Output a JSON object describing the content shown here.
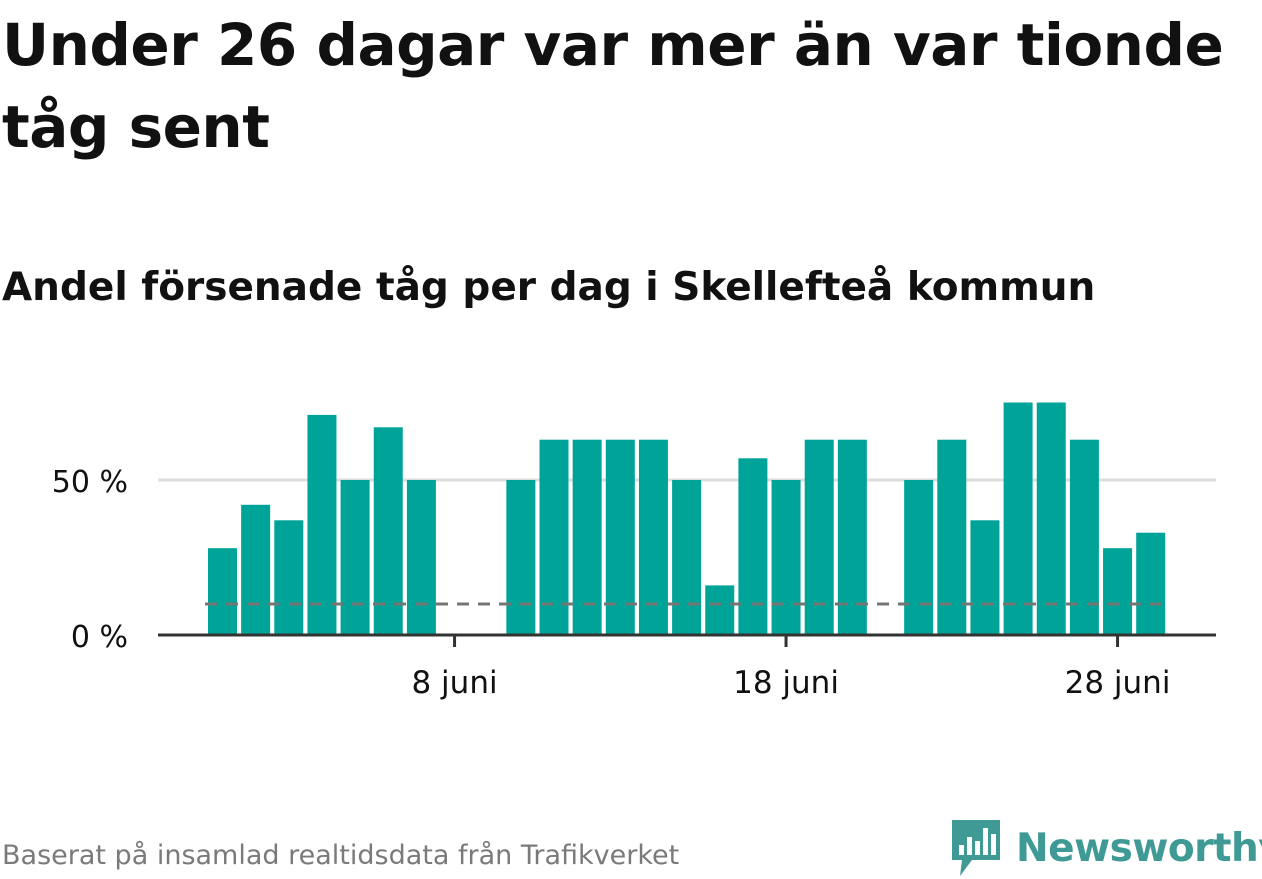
{
  "title": "Under 26 dagar var mer än var tionde tåg sent",
  "subtitle": "Andel försenade tåg per dag i Skellefteå kommun",
  "source": "Baserat på insamlad realtidsdata från Trafikverket",
  "brand": {
    "name": "Newsworthy",
    "icon": "newsworthy-logo-icon",
    "color": "#3f9a96"
  },
  "colors": {
    "bar": "#00a398",
    "reference": "#757575",
    "grid": "#dddddd",
    "axis": "#333333",
    "text": "#111111"
  },
  "chart_data": {
    "type": "bar",
    "title": "Andel försenade tåg per dag i Skellefteå kommun",
    "xlabel": "",
    "ylabel": "",
    "x_unit": "day of June",
    "x": [
      1,
      2,
      3,
      4,
      5,
      6,
      7,
      8,
      9,
      10,
      11,
      12,
      13,
      14,
      15,
      16,
      17,
      18,
      19,
      20,
      21,
      22,
      23,
      24,
      25,
      26,
      27,
      28,
      29,
      30
    ],
    "values": [
      28,
      42,
      37,
      71,
      50,
      67,
      50,
      0,
      0,
      50,
      63,
      63,
      63,
      63,
      50,
      16,
      57,
      50,
      63,
      63,
      0,
      50,
      63,
      37,
      75,
      75,
      63,
      28,
      33,
      null
    ],
    "ylim": [
      0,
      85
    ],
    "yticks": [
      0,
      50
    ],
    "ytick_labels": [
      "0 %",
      "50 %"
    ],
    "xticks": [
      8,
      18,
      28
    ],
    "xtick_labels": [
      "8 juni",
      "18 juni",
      "28 juni"
    ],
    "reference_line": {
      "value": 10,
      "style": "dashed"
    },
    "grid": true,
    "legend": "none"
  }
}
